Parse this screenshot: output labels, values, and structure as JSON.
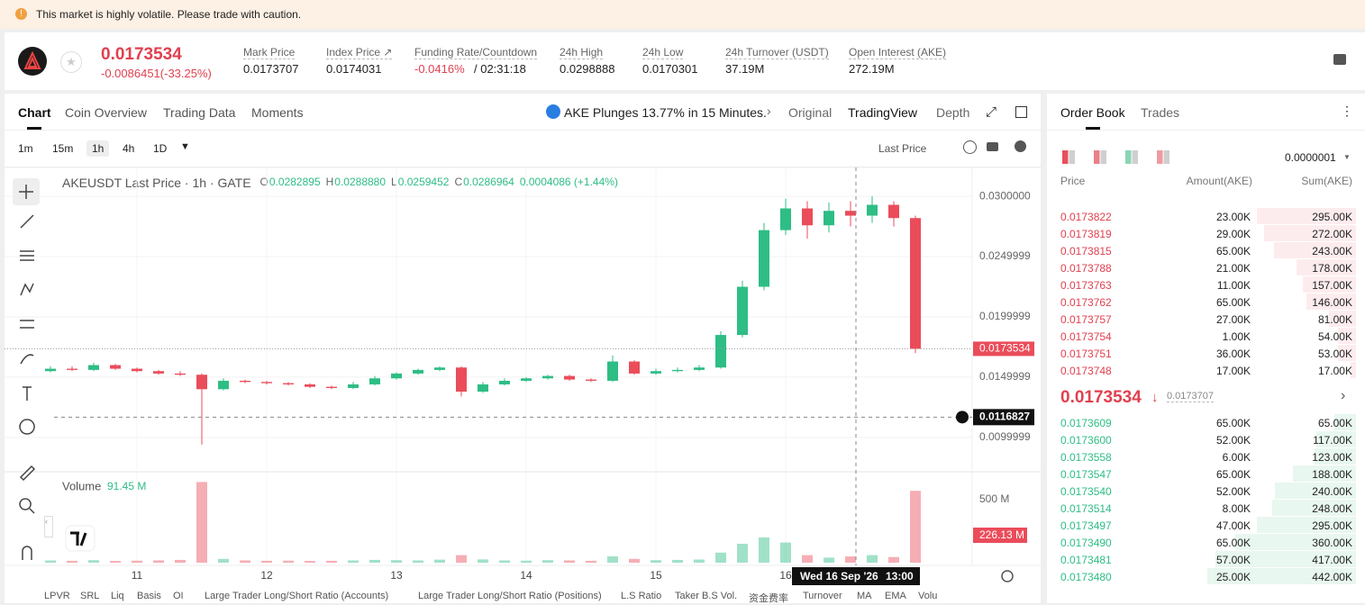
{
  "banner": "This market is highly volatile. Please trade with caution.",
  "ticker": {
    "price": "0.0173534",
    "change": "-0.0086451(-33.25%)",
    "stats": [
      {
        "label": "Mark Price",
        "value": "0.0173707"
      },
      {
        "label": "Index Price ↗",
        "value": "0.0174031"
      },
      {
        "label": "Funding Rate/Countdown",
        "value": "-0.0416%",
        "extra": "/ 02:31:18"
      },
      {
        "label": "24h High",
        "value": "0.0298888"
      },
      {
        "label": "24h Low",
        "value": "0.0170301"
      },
      {
        "label": "24h Turnover (USDT)",
        "value": "37.19M"
      },
      {
        "label": "Open Interest (AKE)",
        "value": "272.19M"
      }
    ]
  },
  "tabs": [
    "Chart",
    "Coin Overview",
    "Trading Data",
    "Moments"
  ],
  "news": "AKE Plunges 13.77% in 15 Minutes.",
  "views": [
    "Original",
    "TradingView",
    "Depth"
  ],
  "intervals": [
    "1m",
    "15m",
    "1h",
    "4h",
    "1D"
  ],
  "price_type": "Last Price",
  "legend": [
    "AKEUSDT Last Price · 1h · GATE",
    "O",
    "0.0282895",
    "H",
    "0.0288880",
    "L",
    "0.0259452",
    "C",
    "0.0286964",
    "0.0004086 (+1.44%)"
  ],
  "chart_data": {
    "type": "candlestick",
    "up_color": "#2ebd85",
    "down_color": "#ea4c5a",
    "grid": true,
    "categories": [
      null,
      null,
      null,
      null,
      "11",
      null,
      null,
      null,
      null,
      null,
      "12",
      null,
      null,
      null,
      null,
      null,
      "13",
      null,
      null,
      null,
      null,
      null,
      "14",
      null,
      null,
      null,
      null,
      null,
      "15",
      null,
      null,
      null,
      null,
      null,
      "16",
      null,
      null,
      null,
      null,
      null,
      null
    ],
    "open": [
      0.0155,
      0.0157,
      0.0156,
      0.016,
      0.0157,
      0.0155,
      0.0153,
      0.0152,
      0.014,
      0.0147,
      0.0146,
      0.0145,
      0.0144,
      0.0142,
      0.0141,
      0.0144,
      0.0149,
      0.0153,
      0.0156,
      0.0158,
      0.0138,
      0.0144,
      0.0147,
      0.0149,
      0.0151,
      0.0148,
      0.0147,
      0.0163,
      0.0153,
      0.0155,
      0.0156,
      0.0158,
      0.0185,
      0.0225,
      0.0272,
      0.029,
      0.0276,
      0.0288,
      0.0284,
      0.0293,
      0.0282
    ],
    "high": [
      0.0159,
      0.0159,
      0.0162,
      0.0161,
      0.0158,
      0.0156,
      0.0155,
      0.0153,
      0.0149,
      0.0148,
      0.0147,
      0.0146,
      0.0145,
      0.0143,
      0.0146,
      0.0151,
      0.0154,
      0.0157,
      0.0159,
      0.0159,
      0.0146,
      0.0149,
      0.015,
      0.0152,
      0.0152,
      0.0149,
      0.0168,
      0.0164,
      0.0157,
      0.0158,
      0.016,
      0.0188,
      0.023,
      0.0278,
      0.0298,
      0.0296,
      0.0295,
      0.0296,
      0.03,
      0.0296,
      0.0284
    ],
    "low": [
      0.0154,
      0.0155,
      0.0155,
      0.0156,
      0.0154,
      0.0152,
      0.0151,
      0.0094,
      0.0139,
      0.0145,
      0.0144,
      0.0143,
      0.0141,
      0.014,
      0.014,
      0.0143,
      0.0148,
      0.0152,
      0.0155,
      0.0134,
      0.0137,
      0.0143,
      0.0146,
      0.0148,
      0.0147,
      0.0146,
      0.0146,
      0.0152,
      0.0152,
      0.0154,
      0.0155,
      0.0157,
      0.0183,
      0.0222,
      0.0268,
      0.0265,
      0.027,
      0.0275,
      0.0278,
      0.0275,
      0.017
    ],
    "close": [
      0.0157,
      0.0156,
      0.016,
      0.0157,
      0.0155,
      0.0153,
      0.0152,
      0.014,
      0.0147,
      0.0146,
      0.0145,
      0.0144,
      0.0142,
      0.0141,
      0.0144,
      0.0149,
      0.0153,
      0.0156,
      0.0158,
      0.0138,
      0.0144,
      0.0147,
      0.0149,
      0.0151,
      0.0148,
      0.0147,
      0.0163,
      0.0153,
      0.0155,
      0.0156,
      0.0158,
      0.0185,
      0.0225,
      0.0272,
      0.029,
      0.0276,
      0.0288,
      0.0284,
      0.0293,
      0.0282,
      0.0173534
    ],
    "volume": [
      18,
      15,
      20,
      14,
      16,
      18,
      22,
      640,
      30,
      18,
      15,
      16,
      14,
      15,
      18,
      22,
      20,
      18,
      24,
      60,
      26,
      18,
      16,
      20,
      18,
      15,
      50,
      30,
      20,
      22,
      25,
      80,
      150,
      200,
      160,
      60,
      40,
      50,
      60,
      45,
      570
    ],
    "ylim": [
      0.0073,
      0.0324
    ],
    "yticks": [
      {
        "value": 0.03,
        "label": "0.0300000"
      },
      {
        "value": 0.0249999,
        "label": "0.0249999"
      },
      {
        "value": 0.0199999,
        "label": "0.0199999"
      },
      {
        "value": 0.0149999,
        "label": "0.0149999"
      },
      {
        "value": 0.0099999,
        "label": "0.0099999"
      }
    ],
    "y2lim": [
      0,
      714
    ],
    "y2ticks": [
      {
        "value": 500,
        "label": "500 M"
      }
    ],
    "volume_title": "Volume",
    "volume_label": "91.45 M",
    "last_volume_label": "226.13 M",
    "crosshair": {
      "price": 0.0116827,
      "time": "Wed 16 Sep '26",
      "clock": "13:00"
    }
  },
  "order_book": {
    "tabs": [
      "Order Book",
      "Trades"
    ],
    "precision": "0.0000001",
    "columns": [
      "Price",
      "Amount(AKE)",
      "Sum(AKE)"
    ],
    "asks": [
      [
        "0.0173822",
        "23.00K",
        "295.00K"
      ],
      [
        "0.0173819",
        "29.00K",
        "272.00K"
      ],
      [
        "0.0173815",
        "65.00K",
        "243.00K"
      ],
      [
        "0.0173788",
        "21.00K",
        "178.00K"
      ],
      [
        "0.0173763",
        "11.00K",
        "157.00K"
      ],
      [
        "0.0173762",
        "65.00K",
        "146.00K"
      ],
      [
        "0.0173757",
        "27.00K",
        "81.00K"
      ],
      [
        "0.0173754",
        "1.00K",
        "54.00K"
      ],
      [
        "0.0173751",
        "36.00K",
        "53.00K"
      ],
      [
        "0.0173748",
        "17.00K",
        "17.00K"
      ]
    ],
    "mid": {
      "price": "0.0173534",
      "arrow": "↓",
      "mark": "0.0173707"
    },
    "bids": [
      [
        "0.0173609",
        "65.00K",
        "65.00K"
      ],
      [
        "0.0173600",
        "52.00K",
        "117.00K"
      ],
      [
        "0.0173558",
        "6.00K",
        "123.00K"
      ],
      [
        "0.0173547",
        "65.00K",
        "188.00K"
      ],
      [
        "0.0173540",
        "52.00K",
        "240.00K"
      ],
      [
        "0.0173514",
        "8.00K",
        "248.00K"
      ],
      [
        "0.0173497",
        "47.00K",
        "295.00K"
      ],
      [
        "0.0173490",
        "65.00K",
        "360.00K"
      ],
      [
        "0.0173481",
        "57.00K",
        "417.00K"
      ],
      [
        "0.0173480",
        "25.00K",
        "442.00K"
      ]
    ]
  },
  "bottom_tabs": [
    "LPVR",
    "SRL",
    "Liq",
    "Basis",
    "OI",
    "Large Trader Long/Short Ratio (Accounts)",
    "Large Trader Long/Short Ratio (Positions)",
    "L.S Ratio",
    "Taker B.S Vol.",
    "资金费率",
    "Turnover",
    "MA",
    "EMA",
    "Volu"
  ]
}
